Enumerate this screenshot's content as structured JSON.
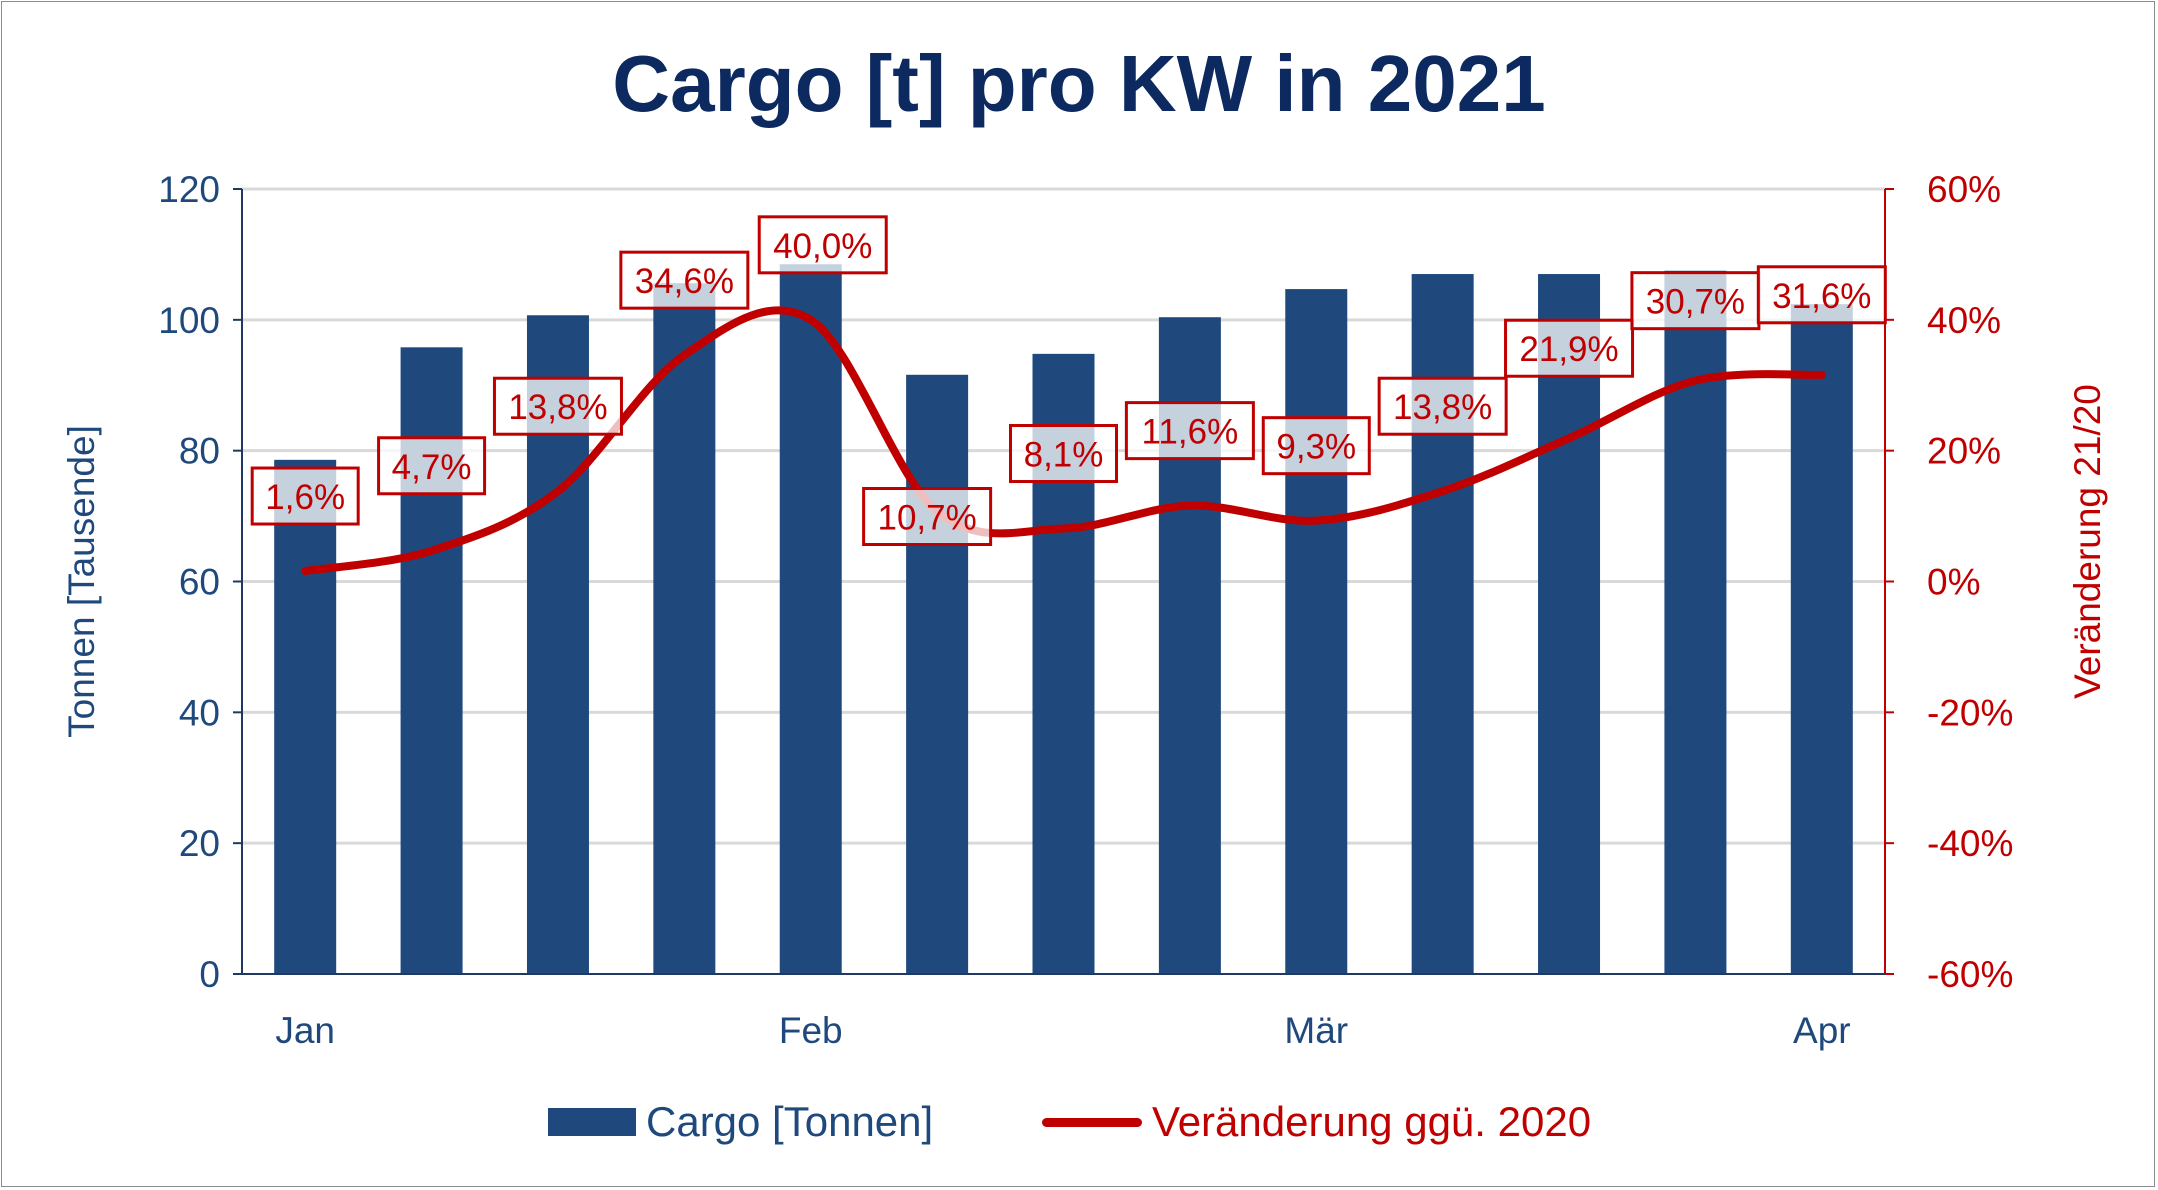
{
  "chart_data": {
    "type": "bar+line",
    "title": "Cargo [t] pro KW in 2021",
    "ylabel_left": "Tonnen [Tausende]",
    "ylabel_right": "Veränderung 21/20",
    "ylim_left": [
      0,
      120
    ],
    "ylim_right": [
      -60,
      60
    ],
    "yticks_left": [
      "0",
      "20",
      "40",
      "60",
      "80",
      "100",
      "120"
    ],
    "yticks_right": [
      "-60%",
      "-40%",
      "-20%",
      "0%",
      "20%",
      "40%",
      "60%"
    ],
    "x_tick_labels": [
      {
        "index": 0,
        "label": "Jan"
      },
      {
        "index": 4,
        "label": "Feb"
      },
      {
        "index": 8,
        "label": "Mär"
      },
      {
        "index": 12,
        "label": "Apr"
      }
    ],
    "grid": true,
    "legend_position": "bottom",
    "series": [
      {
        "name": "Cargo [Tonnen]",
        "type": "bar",
        "axis": "left",
        "color": "#1f497d",
        "values": [
          78.6,
          95.8,
          100.7,
          105.6,
          108.5,
          91.6,
          94.8,
          100.4,
          104.7,
          107.0,
          107.0,
          107.5,
          102.4
        ]
      },
      {
        "name": "Veränderung ggü. 2020",
        "type": "line",
        "axis": "right",
        "color": "#c00000",
        "values": [
          1.6,
          4.7,
          13.8,
          34.6,
          40.0,
          10.7,
          8.1,
          11.6,
          9.3,
          13.8,
          21.9,
          30.7,
          31.6
        ],
        "data_labels": [
          "1,6%",
          "4,7%",
          "13,8%",
          "34,6%",
          "40,0%",
          "10,7%",
          "8,1%",
          "11,6%",
          "9,3%",
          "13,8%",
          "21,9%",
          "30,7%",
          "31,6%"
        ]
      }
    ]
  }
}
